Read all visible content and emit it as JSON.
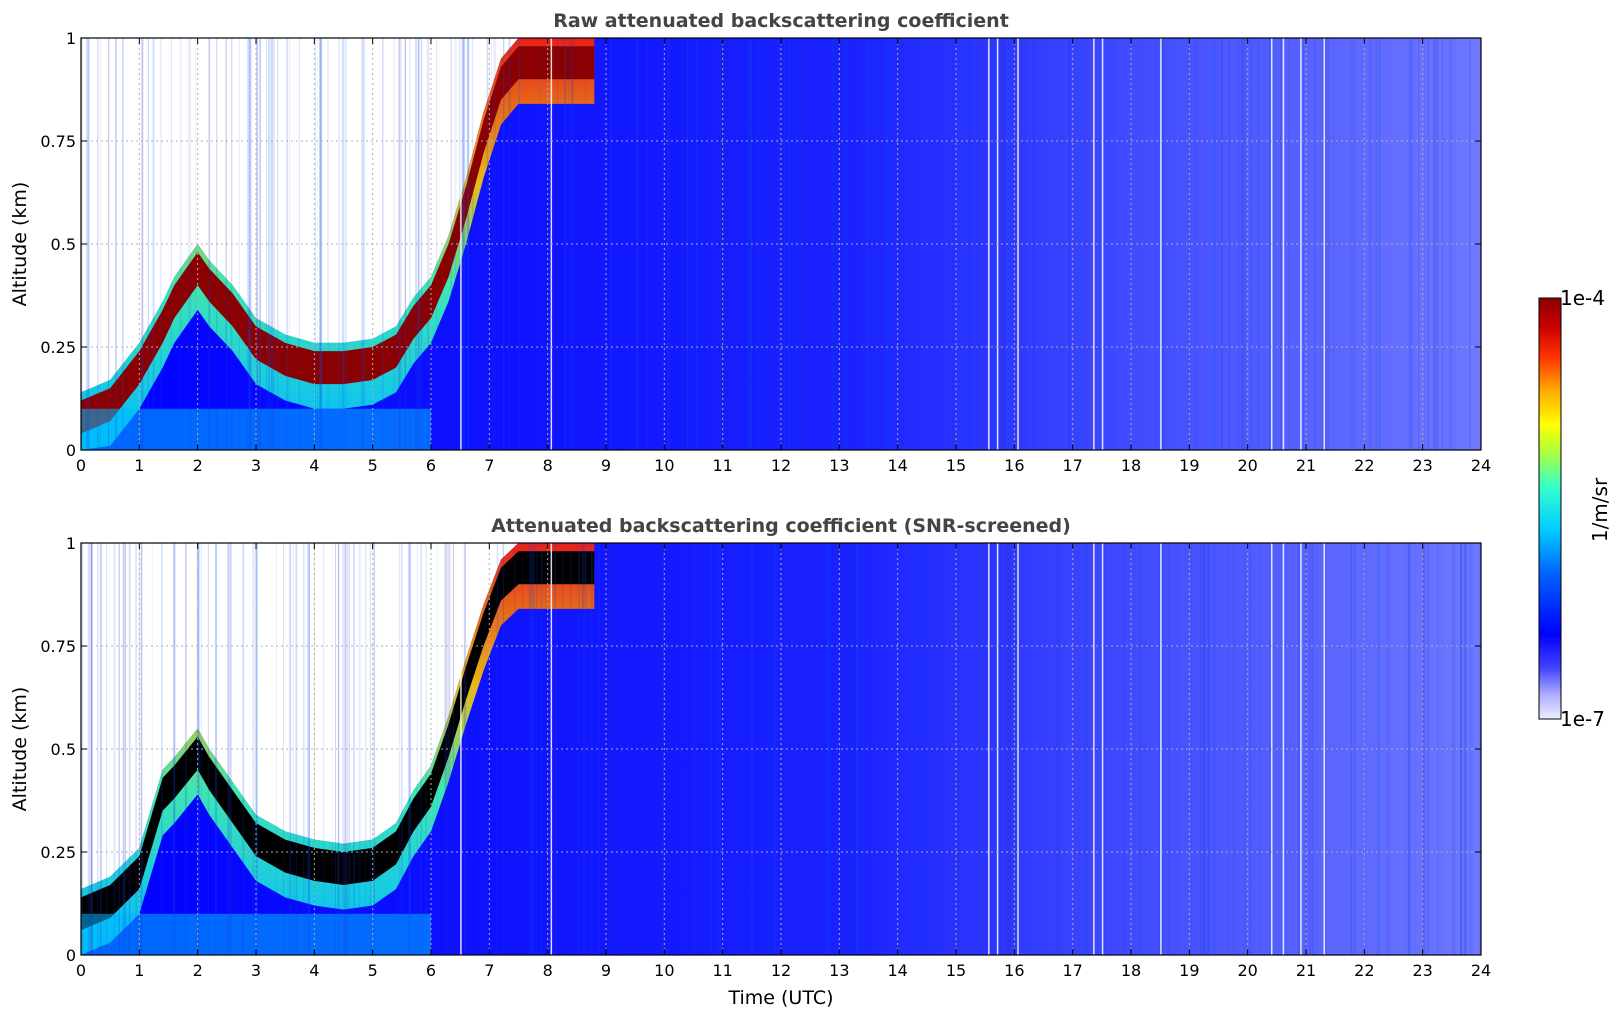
{
  "chart_data": [
    {
      "type": "heatmap",
      "title": "Raw attenuated backscattering coefficient",
      "xlabel": "",
      "ylabel": "Altitude (km)",
      "xlim": [
        0,
        24
      ],
      "ylim": [
        0,
        1
      ],
      "x_ticks": [
        "0",
        "1",
        "2",
        "3",
        "4",
        "5",
        "6",
        "7",
        "8",
        "9",
        "10",
        "11",
        "12",
        "13",
        "14",
        "15",
        "16",
        "17",
        "18",
        "19",
        "20",
        "21",
        "22",
        "23",
        "24"
      ],
      "y_ticks": [
        "0",
        "0.25",
        "0.5",
        "0.75",
        "1"
      ],
      "grid": true,
      "colormap": "jet",
      "top_layer_color": "#8b0000",
      "boundary_layer_top_km": [
        [
          0,
          0.14
        ],
        [
          0.5,
          0.17
        ],
        [
          1.0,
          0.26
        ],
        [
          1.4,
          0.36
        ],
        [
          1.6,
          0.42
        ],
        [
          2.0,
          0.5
        ],
        [
          2.2,
          0.46
        ],
        [
          2.6,
          0.4
        ],
        [
          3.0,
          0.32
        ],
        [
          3.5,
          0.28
        ],
        [
          4.0,
          0.26
        ],
        [
          4.5,
          0.26
        ],
        [
          5.0,
          0.27
        ],
        [
          5.4,
          0.3
        ],
        [
          5.7,
          0.37
        ],
        [
          6.0,
          0.42
        ],
        [
          6.3,
          0.52
        ],
        [
          6.6,
          0.66
        ],
        [
          6.9,
          0.82
        ],
        [
          7.2,
          0.95
        ],
        [
          7.5,
          1.0
        ],
        [
          8.8,
          1.0
        ]
      ]
    },
    {
      "type": "heatmap",
      "title": "Attenuated backscattering coefficient (SNR-screened)",
      "xlabel": "Time (UTC)",
      "ylabel": "Altitude (km)",
      "xlim": [
        0,
        24
      ],
      "ylim": [
        0,
        1
      ],
      "x_ticks": [
        "0",
        "1",
        "2",
        "3",
        "4",
        "5",
        "6",
        "7",
        "8",
        "9",
        "10",
        "11",
        "12",
        "13",
        "14",
        "15",
        "16",
        "17",
        "18",
        "19",
        "20",
        "21",
        "22",
        "23",
        "24"
      ],
      "y_ticks": [
        "0",
        "0.25",
        "0.5",
        "0.75",
        "1"
      ],
      "grid": true,
      "colormap": "jet",
      "top_layer_color": "#000000",
      "boundary_layer_top_km": [
        [
          0,
          0.16
        ],
        [
          0.5,
          0.19
        ],
        [
          1.0,
          0.26
        ],
        [
          1.4,
          0.45
        ],
        [
          1.6,
          0.48
        ],
        [
          2.0,
          0.55
        ],
        [
          2.2,
          0.5
        ],
        [
          2.6,
          0.42
        ],
        [
          3.0,
          0.34
        ],
        [
          3.5,
          0.3
        ],
        [
          4.0,
          0.28
        ],
        [
          4.5,
          0.27
        ],
        [
          5.0,
          0.28
        ],
        [
          5.4,
          0.32
        ],
        [
          5.7,
          0.4
        ],
        [
          6.0,
          0.46
        ],
        [
          6.3,
          0.58
        ],
        [
          6.6,
          0.72
        ],
        [
          6.9,
          0.85
        ],
        [
          7.2,
          0.96
        ],
        [
          7.5,
          1.0
        ],
        [
          8.8,
          1.0
        ]
      ]
    }
  ],
  "colorbar": {
    "label": "1/m/sr",
    "max_label": "1e-4",
    "min_label": "1e-7",
    "range": [
      1e-07,
      0.0001
    ],
    "scale": "log",
    "colors": [
      "#eeeeff",
      "#ccccff",
      "#9999ff",
      "#5555ff",
      "#2222ff",
      "#0000ff",
      "#0044ff",
      "#0088ff",
      "#00ccff",
      "#00ffee",
      "#44ffaa",
      "#aaff44",
      "#ffff00",
      "#ffaa00",
      "#ff5500",
      "#ff0000",
      "#cc0000",
      "#8b0000"
    ]
  }
}
